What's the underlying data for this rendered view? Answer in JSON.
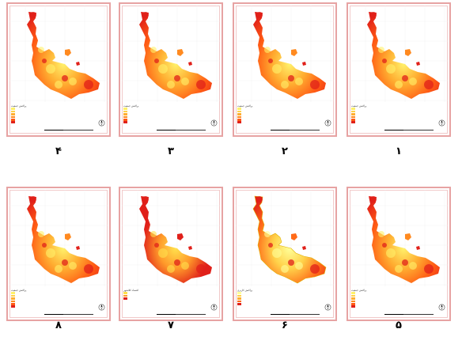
{
  "panels": [
    {
      "number": "۴",
      "legend_title": "پراکنش جمعیت",
      "palette": [
        "#fff16a",
        "#ffd24a",
        "#ffae31",
        "#ff8a20",
        "#ff5a14",
        "#e0201a"
      ],
      "row": 0,
      "col": 0
    },
    {
      "number": "۳",
      "legend_title": "پراکنش جمعیت",
      "palette": [
        "#fff16a",
        "#ffd24a",
        "#ffae31",
        "#ff8a20",
        "#ff5a14",
        "#e0201a"
      ],
      "row": 0,
      "col": 1
    },
    {
      "number": "۲",
      "legend_title": "پراکنش جمعیت",
      "palette": [
        "#fff16a",
        "#ffd24a",
        "#ffae31",
        "#ff8a20",
        "#ff5a14",
        "#e0201a"
      ],
      "row": 0,
      "col": 2
    },
    {
      "number": "۱",
      "legend_title": "پراکنش جمعیت",
      "palette": [
        "#fff16a",
        "#ffd24a",
        "#ffae31",
        "#ff8a20",
        "#ff5a14",
        "#e0201a"
      ],
      "row": 0,
      "col": 3
    },
    {
      "number": "۸",
      "legend_title": "پراکنش جمعیت",
      "palette": [
        "#fff16a",
        "#ffd24a",
        "#ffae31",
        "#ff8a20",
        "#ff5a14",
        "#e0201a"
      ],
      "row": 1,
      "col": 0
    },
    {
      "number": "۷",
      "legend_title": "اقتصاد کلانشهر",
      "palette": [
        "#ffe14d",
        "#ff9a2a",
        "#e0201a"
      ],
      "row": 1,
      "col": 1
    },
    {
      "number": "۶",
      "legend_title": "پراکنش کاربری",
      "palette": [
        "#ffff99",
        "#ffd24a",
        "#ffae31",
        "#ff6a18",
        "#e0201a"
      ],
      "row": 1,
      "col": 2
    },
    {
      "number": "۵",
      "legend_title": "پراکنش جمعیت",
      "palette": [
        "#fff16a",
        "#ffd24a",
        "#ffae31",
        "#ff8a20",
        "#ff5a14",
        "#e0201a"
      ],
      "row": 1,
      "col": 3
    }
  ]
}
